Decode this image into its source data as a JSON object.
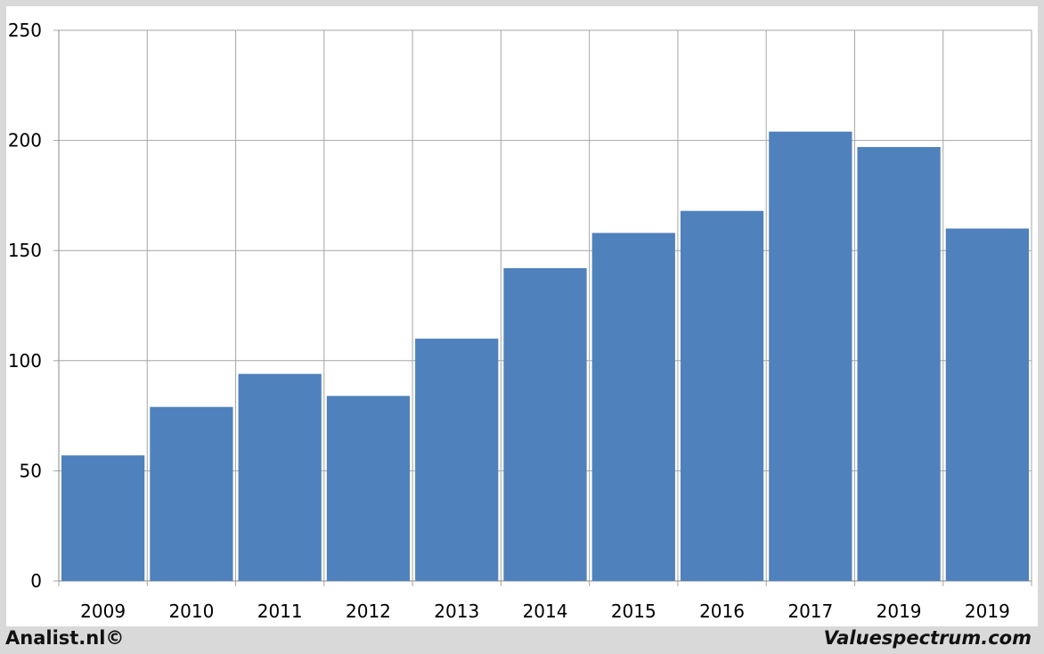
{
  "footer": {
    "left_text": "Analist.nl©",
    "right_text": "Valuespectrum.com"
  },
  "colors": {
    "bar": "#4f81bd",
    "grid": "#a6a6a6",
    "background": "#ffffff",
    "outer": "#d9d9d9"
  },
  "chart_data": {
    "type": "bar",
    "title": "",
    "xlabel": "",
    "ylabel": "",
    "categories": [
      "2009",
      "2010",
      "2011",
      "2012",
      "2013",
      "2014",
      "2015",
      "2016",
      "2017",
      "2019",
      "2019"
    ],
    "values": [
      57,
      79,
      94,
      84,
      110,
      142,
      158,
      168,
      204,
      197,
      160
    ],
    "ylim": [
      0,
      250
    ],
    "yticks": [
      0,
      50,
      100,
      150,
      200,
      250
    ],
    "grid": true,
    "legend": "none"
  }
}
